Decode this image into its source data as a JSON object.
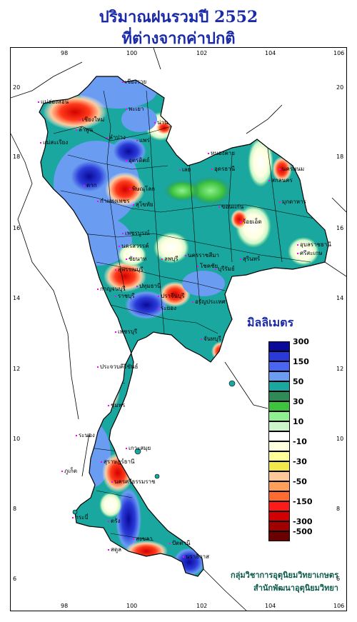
{
  "title_line1": "ปริมาณฝนรวมปี 2552",
  "title_line2": "ที่ต่างจากค่าปกติ",
  "lon_ticks": [
    "98",
    "100",
    "102",
    "104",
    "106"
  ],
  "lat_ticks": [
    "20",
    "18",
    "16",
    "14",
    "12",
    "10",
    "8",
    "6"
  ],
  "legend": {
    "title": "มิลลิเมตร",
    "bins": [
      {
        "label": "300",
        "color": "#0a0a9a"
      },
      {
        "label": "",
        "color": "#2a3ad8"
      },
      {
        "label": "150",
        "color": "#4a66f0"
      },
      {
        "label": "",
        "color": "#6a9cf2"
      },
      {
        "label": "50",
        "color": "#1aa7a0"
      },
      {
        "label": "",
        "color": "#2e8b57"
      },
      {
        "label": "30",
        "color": "#3cc23c"
      },
      {
        "label": "",
        "color": "#8ef08e"
      },
      {
        "label": "10",
        "color": "#ccf5cc"
      },
      {
        "label": "",
        "color": "#ffffff"
      },
      {
        "label": "-10",
        "color": "#ffffe0"
      },
      {
        "label": "",
        "color": "#ffff99"
      },
      {
        "label": "-30",
        "color": "#f2e84a"
      },
      {
        "label": "",
        "color": "#ffc89a"
      },
      {
        "label": "-50",
        "color": "#ff9f5a"
      },
      {
        "label": "",
        "color": "#ff6a30"
      },
      {
        "label": "-150",
        "color": "#ff1a1a"
      },
      {
        "label": "",
        "color": "#d20000"
      },
      {
        "label": "-300",
        "color": "#a00000"
      },
      {
        "label": "-500",
        "color": "#6a0000"
      }
    ]
  },
  "credit_line1": "กลุ่มวิชาการอุตุนิยมวิทยาเกษตร",
  "credit_line2": "สำนักพัฒนาอุตุนิยมวิทยา",
  "places": [
    {
      "name": "เชียงราย"
    },
    {
      "name": "แม่ฮ่องสอน"
    },
    {
      "name": "พะเยา"
    },
    {
      "name": "น่าน"
    },
    {
      "name": "เชียงใหม่"
    },
    {
      "name": "ลำพูน"
    },
    {
      "name": "ลำปาง"
    },
    {
      "name": "แพร่"
    },
    {
      "name": "แม่สะเรียง"
    },
    {
      "name": "อุตรดิตถ์"
    },
    {
      "name": "ตาก"
    },
    {
      "name": "พิษณุโลก"
    },
    {
      "name": "กำแพงเพชร"
    },
    {
      "name": "สุโขทัย"
    },
    {
      "name": "เพชรบูรณ์"
    },
    {
      "name": "เลย"
    },
    {
      "name": "หนองคาย"
    },
    {
      "name": "อุดรธานี"
    },
    {
      "name": "นครพนม"
    },
    {
      "name": "สกลนคร"
    },
    {
      "name": "มุกดาหาร"
    },
    {
      "name": "ขอนแก่น"
    },
    {
      "name": "ร้อยเอ็ด"
    },
    {
      "name": "อุบลราชธานี"
    },
    {
      "name": "ศรีสะเกษ"
    },
    {
      "name": "นครสวรรค์"
    },
    {
      "name": "ชัยนาท"
    },
    {
      "name": "ลพบุรี"
    },
    {
      "name": "นครราชสีมา"
    },
    {
      "name": "โชคชัย"
    },
    {
      "name": "สุรินทร์"
    },
    {
      "name": "บุรีรัมย์"
    },
    {
      "name": "สุพรรณบุรี"
    },
    {
      "name": "กาญจนบุรี"
    },
    {
      "name": "ปทุมธานี"
    },
    {
      "name": "ราชบุรี"
    },
    {
      "name": "ปราจีนบุรี"
    },
    {
      "name": "อรัญประเทศ"
    },
    {
      "name": "ระยอง"
    },
    {
      "name": "จันทบุรี"
    },
    {
      "name": "เพชรบุรี"
    },
    {
      "name": "ประจวบคีรีขันธ์"
    },
    {
      "name": "ชุมพร"
    },
    {
      "name": "ระนอง"
    },
    {
      "name": "สุราษฎร์ธานี"
    },
    {
      "name": "เกาะสมุย"
    },
    {
      "name": "ภูเก็ต"
    },
    {
      "name": "นครศรีธรรมราช"
    },
    {
      "name": "กระบี่"
    },
    {
      "name": "ตรัง"
    },
    {
      "name": "สงขลา"
    },
    {
      "name": "สตูล"
    },
    {
      "name": "ปัตตานี"
    },
    {
      "name": "นราธิวาส"
    }
  ]
}
